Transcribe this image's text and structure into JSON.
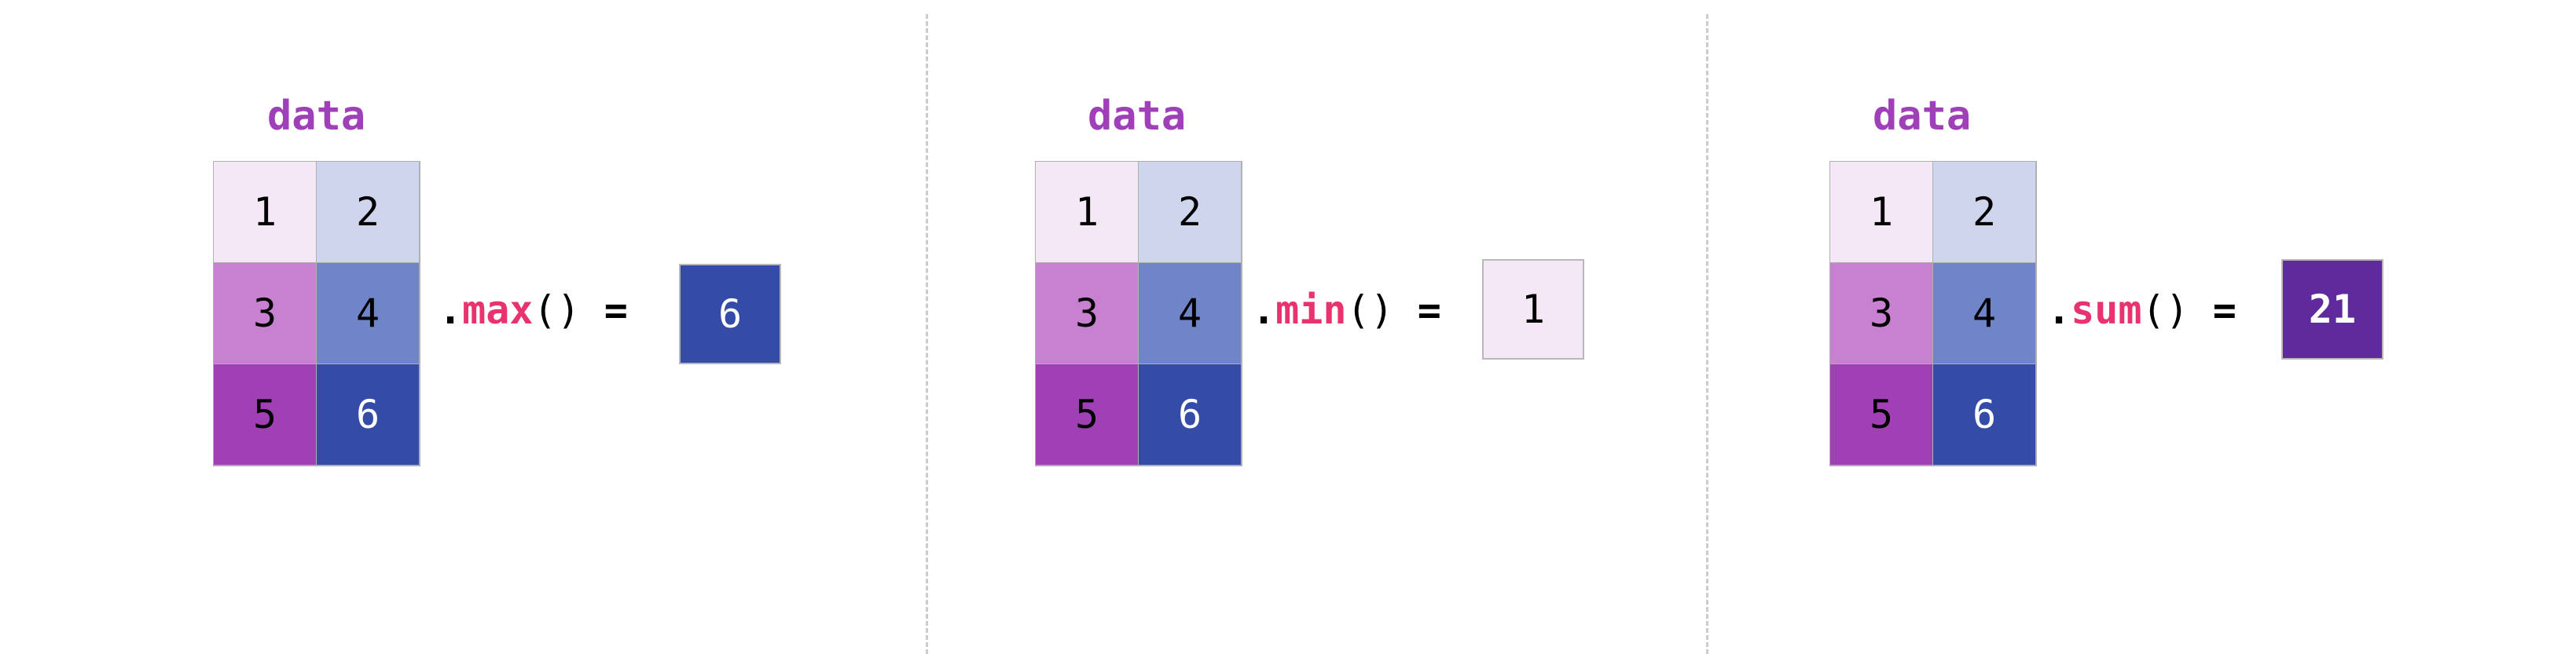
{
  "panels": [
    {
      "label": "data",
      "values": [
        "1",
        "2",
        "3",
        "4",
        "5",
        "6"
      ],
      "method": "max",
      "result": "6",
      "result_color": "#344ca8",
      "result_text_color": "#ffffff",
      "result_bold": false
    },
    {
      "label": "data",
      "values": [
        "1",
        "2",
        "3",
        "4",
        "5",
        "6"
      ],
      "method": "min",
      "result": "1",
      "result_color": "#f5e8f6",
      "result_text_color": "#000000",
      "result_bold": false
    },
    {
      "label": "data",
      "values": [
        "1",
        "2",
        "3",
        "4",
        "5",
        "6"
      ],
      "method": "sum",
      "result": "21",
      "result_color": "#5e2a9c",
      "result_text_color": "#ffffff",
      "result_bold": true
    }
  ],
  "symbols": {
    "dot": ".",
    "parens": "()",
    "equals": "="
  },
  "cell_colors": [
    "#f5e8f6",
    "#d0d5ee",
    "#c880d0",
    "#7084c8",
    "#a040b4",
    "#344ca8"
  ],
  "cell_text_colors": [
    "#000000",
    "#000000",
    "#000000",
    "#000000",
    "#000000",
    "#ffffff"
  ],
  "accent_colors": {
    "label": "#a040b8",
    "method": "#e8336f"
  }
}
